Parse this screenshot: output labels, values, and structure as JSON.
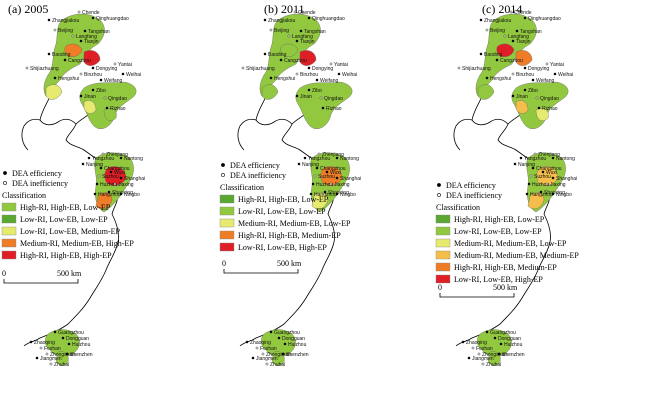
{
  "colors": {
    "dark_green": "#5aa832",
    "light_green": "#92c83f",
    "yellow": "#e6ea6e",
    "light_orange": "#f5be4a",
    "orange": "#ef7d28",
    "red": "#de1f26"
  },
  "panels": [
    {
      "title": "(a) 2005",
      "legend_marks": [
        "DEA efficiency",
        "DEA inefficiency"
      ],
      "classification_title": "Classification",
      "classes": [
        {
          "label": "High-RI, High-EB, Low-EP",
          "color": "#92c83f"
        },
        {
          "label": "Low-RI, Low-EB, Low-EP",
          "color": "#5aa832"
        },
        {
          "label": "Low-RI, Low-EB, Medium-EP",
          "color": "#e6ea6e"
        },
        {
          "label": "Medium-RI, Medium-EB, High-EP",
          "color": "#ef7d28"
        },
        {
          "label": "High-RI, High-EB, High-EP",
          "color": "#de1f26"
        }
      ],
      "scale": {
        "zero": "0",
        "distance": "500 km"
      }
    },
    {
      "title": "(b) 2011",
      "legend_marks": [
        "DEA efficiency",
        "DEA inefficiency"
      ],
      "classification_title": "Classification",
      "classes": [
        {
          "label": "High-RI, High-EB, Low-EP",
          "color": "#5aa832"
        },
        {
          "label": "Low-RI, Low-EB, Low-EP",
          "color": "#92c83f"
        },
        {
          "label": "Medium-RI, Medium-EB, Low-EP",
          "color": "#e6ea6e"
        },
        {
          "label": "High-RI, High-EB, Medium-EP",
          "color": "#ef7d28"
        },
        {
          "label": "Low-RI, Low-EB, High-EP",
          "color": "#de1f26"
        }
      ],
      "scale": {
        "zero": "0",
        "distance": "500 km"
      }
    },
    {
      "title": "(c) 2014",
      "legend_marks": [
        "DEA efficiency",
        "DEA inefficiency"
      ],
      "classification_title": "Classification",
      "classes": [
        {
          "label": "High-RI, High-EB, Low-EP",
          "color": "#5aa832"
        },
        {
          "label": "Low-RI, Low-EB, Low-EP",
          "color": "#92c83f"
        },
        {
          "label": "Medium-RI, Medium-EB, Low-EP",
          "color": "#e6ea6e"
        },
        {
          "label": "Medium-RI, Medium-EB, Medium-EP",
          "color": "#f5be4a"
        },
        {
          "label": "High-RI, High-EB, Medium-EP",
          "color": "#ef7d28"
        },
        {
          "label": "Low-RI, Low-EB, High-EP",
          "color": "#de1f26"
        }
      ],
      "scale": {
        "zero": "0",
        "distance": "500 km"
      }
    }
  ],
  "cities": {
    "north": [
      "Chende",
      "Zhangjiakou",
      "Qinghuangdao",
      "Beijing",
      "Tangshan",
      "Tianjin",
      "Langfang",
      "Baoding",
      "Cangzhou",
      "Shijiazhuang",
      "Hengshui",
      "Dongying",
      "Yantai",
      "Weihai",
      "Weifang",
      "Binzhou",
      "Zibo",
      "Jinan",
      "Qingdao",
      "Rizhao"
    ],
    "yrd": [
      "Yangzhou",
      "Zhenjiang",
      "Nantong",
      "Nanjing",
      "Changzhou",
      "Suzhou",
      "Wuxi",
      "Shanghai",
      "Huzhou",
      "Jiaxing",
      "Hangzhou",
      "Shaoxing",
      "Ningbo"
    ],
    "prd": [
      "Guangzhou",
      "Zhaoqing",
      "Foshan",
      "Dongguan",
      "Huizhou",
      "Zhongshan",
      "Shenzhen",
      "Jiangmen",
      "Zhuhai"
    ]
  }
}
